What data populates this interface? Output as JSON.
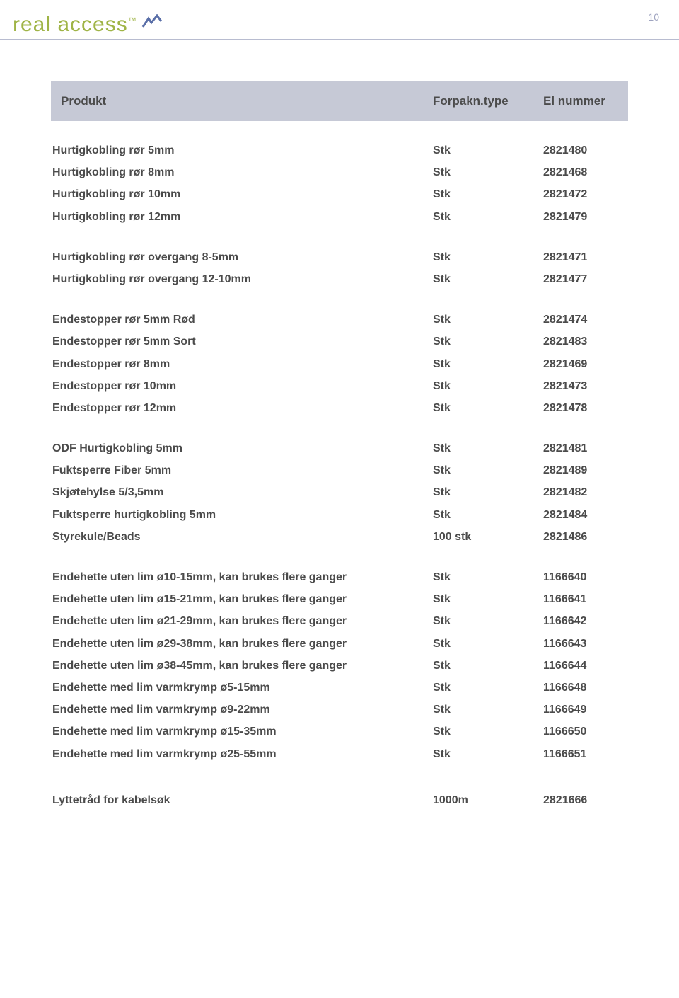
{
  "page_number": "10",
  "logo_text": "real access",
  "logo_tm": "™",
  "header": {
    "produkt": "Produkt",
    "type": "Forpakn.type",
    "nummer": "El nummer"
  },
  "sections": [
    {
      "rows": [
        {
          "p": "Hurtigkobling rør 5mm",
          "t": "Stk",
          "n": "2821480"
        },
        {
          "p": "Hurtigkobling rør 8mm",
          "t": "Stk",
          "n": "2821468"
        },
        {
          "p": "Hurtigkobling rør 10mm",
          "t": "Stk",
          "n": "2821472"
        },
        {
          "p": "Hurtigkobling rør 12mm",
          "t": "Stk",
          "n": "2821479"
        }
      ]
    },
    {
      "rows": [
        {
          "p": "Hurtigkobling rør overgang 8-5mm",
          "t": "Stk",
          "n": "2821471"
        },
        {
          "p": "Hurtigkobling rør overgang 12-10mm",
          "t": "Stk",
          "n": "2821477"
        }
      ]
    },
    {
      "rows": [
        {
          "p": "Endestopper rør 5mm Rød",
          "t": "Stk",
          "n": "2821474"
        },
        {
          "p": "Endestopper rør 5mm Sort",
          "t": "Stk",
          "n": "2821483"
        },
        {
          "p": "Endestopper rør 8mm",
          "t": "Stk",
          "n": "2821469"
        },
        {
          "p": "Endestopper rør 10mm",
          "t": "Stk",
          "n": "2821473"
        },
        {
          "p": "Endestopper rør 12mm",
          "t": "Stk",
          "n": "2821478"
        }
      ]
    },
    {
      "rows": [
        {
          "p": "ODF Hurtigkobling 5mm",
          "t": "Stk",
          "n": "2821481"
        },
        {
          "p": "Fuktsperre Fiber 5mm",
          "t": "Stk",
          "n": "2821489"
        },
        {
          "p": "Skjøtehylse 5/3,5mm",
          "t": "Stk",
          "n": "2821482"
        },
        {
          "p": "Fuktsperre hurtigkobling 5mm",
          "t": "Stk",
          "n": "2821484"
        },
        {
          "p": "Styrekule/Beads",
          "t": "100 stk",
          "n": "2821486"
        }
      ]
    },
    {
      "rows": [
        {
          "p": "Endehette uten lim ø10-15mm, kan brukes flere ganger",
          "t": "Stk",
          "n": "1166640"
        },
        {
          "p": "Endehette uten lim ø15-21mm, kan brukes flere ganger",
          "t": "Stk",
          "n": "1166641"
        },
        {
          "p": "Endehette uten lim ø21-29mm, kan brukes flere ganger",
          "t": "Stk",
          "n": "1166642"
        },
        {
          "p": "Endehette uten lim ø29-38mm, kan brukes flere ganger",
          "t": "Stk",
          "n": "1166643"
        },
        {
          "p": "Endehette uten lim ø38-45mm, kan brukes flere ganger",
          "t": "Stk",
          "n": "1166644"
        },
        {
          "p": "Endehette med lim varmkrymp ø5-15mm",
          "t": "Stk",
          "n": "1166648"
        },
        {
          "p": "Endehette med lim varmkrymp ø9-22mm",
          "t": "Stk",
          "n": "1166649"
        },
        {
          "p": "Endehette med lim varmkrymp ø15-35mm",
          "t": "Stk",
          "n": "1166650"
        },
        {
          "p": "Endehette med lim varmkrymp ø25-55mm",
          "t": "Stk",
          "n": "1166651"
        }
      ]
    }
  ],
  "footer": {
    "p": "Lyttetråd for kabelsøk",
    "t": "1000m",
    "n": "2821666"
  },
  "colors": {
    "header_bg": "#c6c9d6",
    "text": "#4b4b4b",
    "logo": "#9fb446",
    "page_num": "#9fa4c0",
    "rule": "#b8bcd0"
  },
  "font_sizes": {
    "header": 17,
    "body": 16,
    "logo": 30,
    "page_num": 14
  }
}
